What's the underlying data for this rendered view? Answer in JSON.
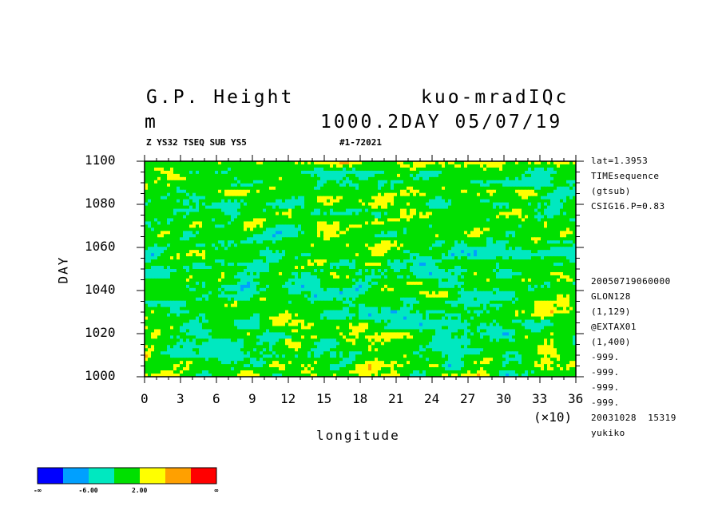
{
  "header": {
    "title_left": "G.P. Height",
    "title_right": "kuo-mradIQc",
    "units": "m",
    "level_date": "1000.2DAY 05/07/19",
    "subtitle_left": "Z YS32 TSEQ SUB YS5",
    "subtitle_right": "#1-72021"
  },
  "side_info": {
    "top": [
      "lat=1.3953",
      "TIMEsequence",
      "(gtsub)",
      "CSIG16.P=0.83"
    ],
    "bottom": [
      "20050719060000",
      "GLON128",
      "(1,129)",
      "@EXTAX01",
      "(1,400)",
      "-999.",
      "-999.",
      "-999.",
      "-999.",
      "20031028  15319",
      "yukiko"
    ]
  },
  "colors": {
    "levels": [
      "#0000ff",
      "#00a0ff",
      "#00e8c0",
      "#00e000",
      "#ffff00",
      "#ffa000",
      "#ff0000"
    ]
  },
  "colorbar": {
    "labels": [
      "-∞",
      "-6.00",
      "2.00",
      "∞"
    ]
  },
  "chart_data": {
    "type": "heatmap",
    "title": "G.P. Height",
    "xlabel": "longitude",
    "ylabel": "DAY",
    "x_multiplier": "(×10)",
    "xlim": [
      0,
      36
    ],
    "ylim": [
      1000,
      1100
    ],
    "x_ticks": [
      "0",
      "3",
      "6",
      "9",
      "12",
      "15",
      "18",
      "21",
      "24",
      "27",
      "30",
      "33",
      "36"
    ],
    "y_ticks": [
      "1000",
      "1020",
      "1040",
      "1060",
      "1080",
      "1100"
    ],
    "levels": [
      "-∞",
      "-6.00",
      "2.00",
      "∞"
    ],
    "note": "noisy filled-contour field dominated by green/cyan with yellow patches"
  }
}
